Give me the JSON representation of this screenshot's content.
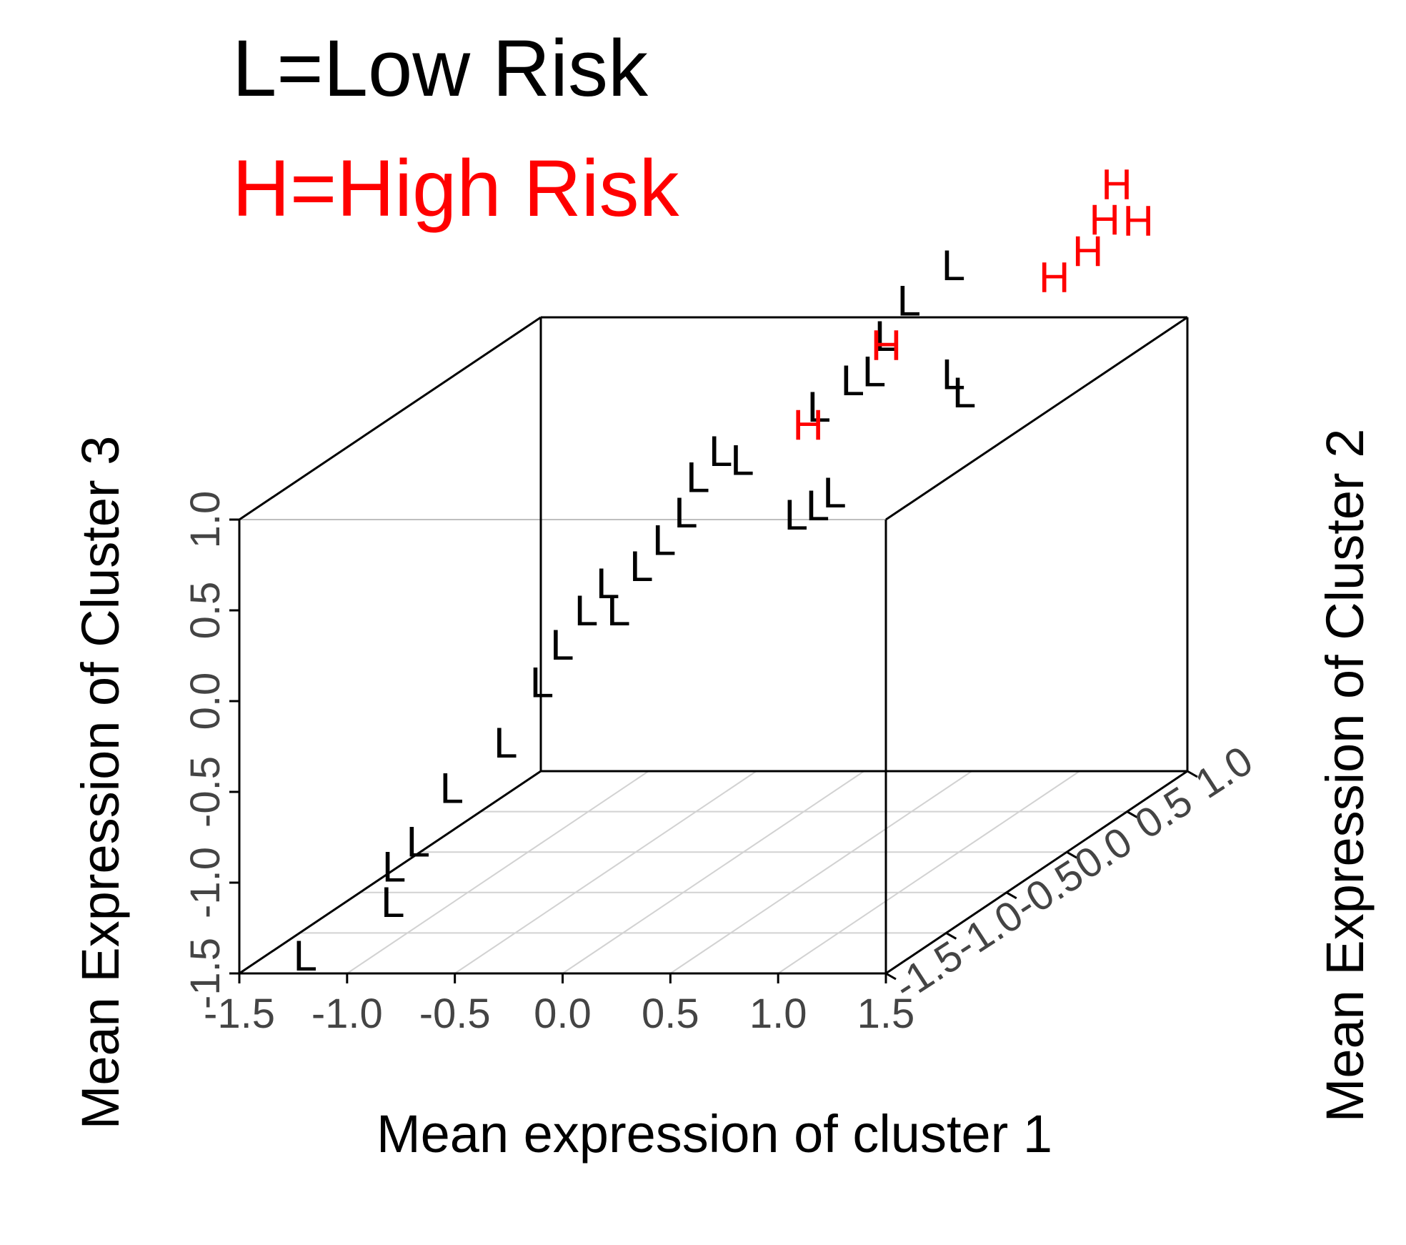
{
  "legend": [
    {
      "label": "L=Low Risk",
      "color": "#000000"
    },
    {
      "label": "H=High Risk",
      "color": "#ff0000"
    }
  ],
  "chart_data": {
    "type": "scatter3d",
    "xlabel": "Mean expression of cluster 1",
    "ylabel": "Mean Expression of Cluster 2",
    "zlabel": "Mean Expression of Cluster 3",
    "x_ticks": [
      "-1.5",
      "-1.0",
      "-0.5",
      "0.0",
      "0.5",
      "1.0",
      "1.5"
    ],
    "y_ticks": [
      "-1.5",
      "-1.0",
      "-0.5",
      "0.0",
      "0.5",
      "1.0"
    ],
    "z_ticks": [
      "-1.5",
      "-1.0",
      "-0.5",
      "0.0",
      "0.5",
      "1.0"
    ],
    "xlim": [
      -1.5,
      1.5
    ],
    "ylim": [
      -1.5,
      1.0
    ],
    "zlim": [
      -1.5,
      1.0
    ],
    "grid": true,
    "series": [
      {
        "label": "L",
        "color": "#000000",
        "points": [
          [
            -1.25,
            -1.4,
            -1.45
          ],
          [
            -0.9,
            -1.3,
            -1.2
          ],
          [
            -0.95,
            -1.2,
            -1.05
          ],
          [
            -0.95,
            -1.0,
            -1.0
          ],
          [
            -0.85,
            -0.9,
            -0.75
          ],
          [
            -0.6,
            -0.9,
            -0.5
          ],
          [
            -0.6,
            -0.6,
            -0.3
          ],
          [
            -0.45,
            -0.7,
            -0.05
          ],
          [
            -0.45,
            -0.5,
            0.05
          ],
          [
            -0.3,
            -0.5,
            0.05
          ],
          [
            -0.35,
            -0.5,
            0.2
          ],
          [
            -0.25,
            -0.4,
            0.25
          ],
          [
            -0.2,
            -0.3,
            0.35
          ],
          [
            -0.1,
            -0.3,
            0.5
          ],
          [
            -0.1,
            -0.2,
            0.65
          ],
          [
            -0.05,
            -0.1,
            0.75
          ],
          [
            0.05,
            -0.1,
            0.7
          ],
          [
            0.3,
            -0.1,
            0.4
          ],
          [
            0.4,
            -0.1,
            0.45
          ],
          [
            0.45,
            -0.05,
            0.5
          ],
          [
            0.35,
            0.0,
            0.95
          ],
          [
            0.45,
            0.1,
            1.05
          ],
          [
            0.55,
            0.1,
            1.1
          ],
          [
            0.55,
            0.2,
            1.25
          ],
          [
            0.6,
            0.3,
            1.4
          ],
          [
            0.75,
            0.4,
            0.95
          ],
          [
            0.8,
            0.4,
            0.85
          ],
          [
            0.75,
            0.4,
            1.55
          ]
        ]
      },
      {
        "label": "H",
        "color": "#ff0000",
        "points": [
          [
            0.3,
            0.0,
            0.85
          ],
          [
            0.55,
            0.2,
            1.2
          ],
          [
            1.05,
            0.7,
            1.35
          ],
          [
            1.15,
            0.8,
            1.45
          ],
          [
            1.2,
            0.85,
            1.6
          ],
          [
            1.3,
            0.95,
            1.55
          ],
          [
            1.2,
            0.95,
            1.75
          ]
        ]
      }
    ]
  }
}
